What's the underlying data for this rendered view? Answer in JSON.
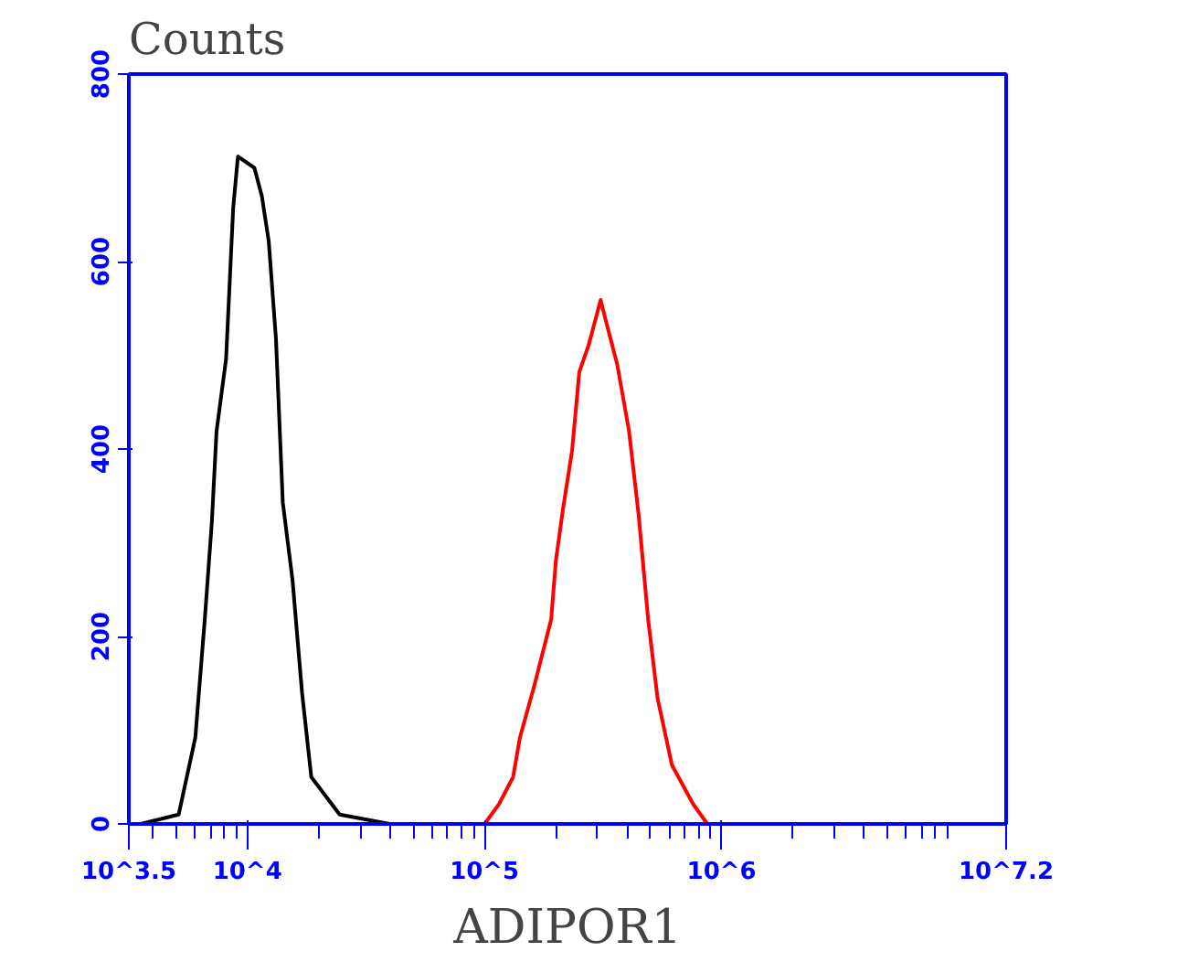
{
  "chart_data": {
    "type": "line",
    "title": "Counts",
    "xlabel": "ADIPOR1",
    "log": "x",
    "grid": false,
    "xlim": [
      3162.28,
      15848932
    ],
    "xticks": [
      {
        "value": 3162.28,
        "label": "10^3.5"
      },
      {
        "value": 10000,
        "label": "10^4"
      },
      {
        "value": 100000,
        "label": "10^5"
      },
      {
        "value": 1000000,
        "label": "10^6"
      },
      {
        "value": 15848932,
        "label": "10^7.2"
      }
    ],
    "ylim": [
      0,
      800
    ],
    "yticks": [
      0,
      200,
      400,
      600,
      800
    ],
    "series": [
      {
        "color": "#000000",
        "x": [
          3550,
          5130,
          6030,
          6610,
          7080,
          7410,
          8130,
          8710,
          9120,
          10700,
          11500,
          12300,
          13200,
          14100,
          15500,
          17000,
          18600,
          24500,
          39800,
          200000
        ],
        "values": [
          0,
          10,
          92,
          218,
          322,
          419,
          496,
          657,
          712,
          700,
          670,
          622,
          517,
          343,
          260,
          140,
          50,
          10,
          0,
          0
        ]
      },
      {
        "color": "#ff0000",
        "x": [
          20000,
          100000,
          115000,
          132000,
          141000,
          162000,
          191000,
          200000,
          214000,
          234000,
          251000,
          275000,
          309000,
          324000,
          363000,
          407000,
          447000,
          490000,
          537000,
          617000,
          759000,
          871000,
          1000000
        ],
        "values": [
          0,
          0,
          21,
          50,
          92,
          147,
          218,
          281,
          335,
          398,
          482,
          511,
          559,
          538,
          490,
          419,
          329,
          218,
          134,
          63,
          21,
          0,
          0
        ]
      }
    ]
  }
}
